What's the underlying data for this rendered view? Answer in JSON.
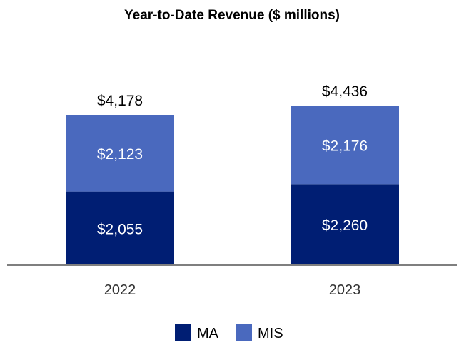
{
  "chart_data": {
    "type": "bar",
    "stacked": true,
    "title": "Year-to-Date Revenue ($ millions)",
    "categories": [
      "2022",
      "2023"
    ],
    "series": [
      {
        "name": "MA",
        "values": [
          2055,
          2260
        ],
        "labels": [
          "$2,055",
          "$2,260"
        ],
        "color": "#001e73"
      },
      {
        "name": "MIS",
        "values": [
          2123,
          2176
        ],
        "labels": [
          "$2,123",
          "$2,176"
        ],
        "color": "#4a69be"
      }
    ],
    "totals": [
      4178,
      4436
    ],
    "total_labels": [
      "$4,178",
      "$4,436"
    ],
    "ylim": [
      0,
      5000
    ],
    "grid": false,
    "legend_position": "bottom"
  }
}
